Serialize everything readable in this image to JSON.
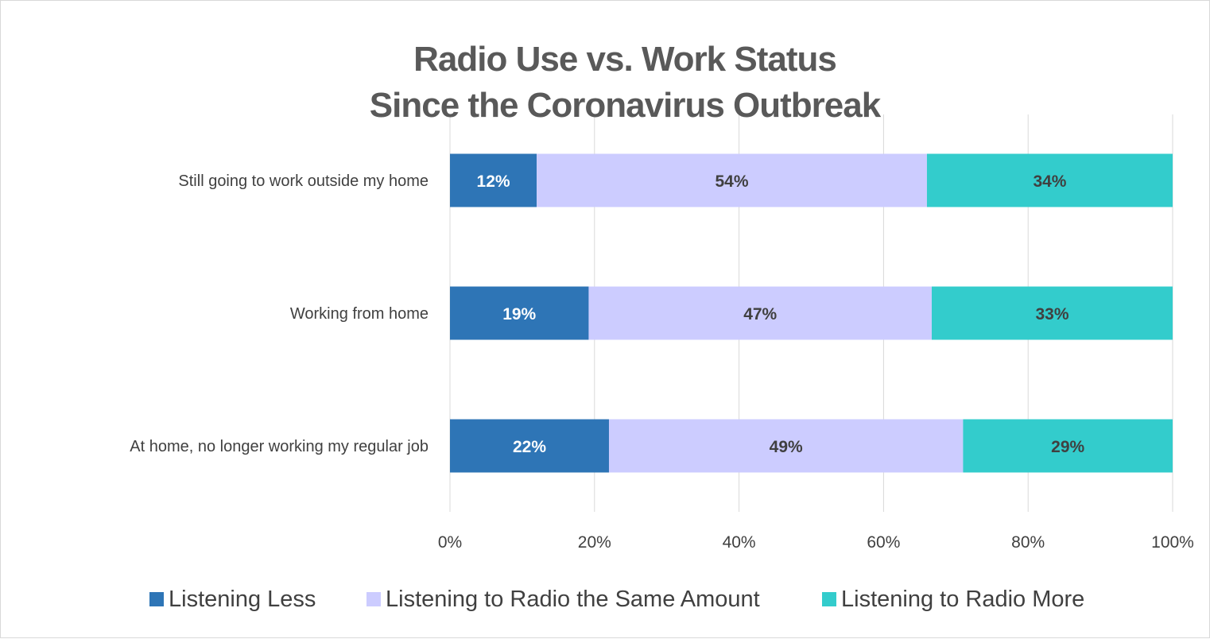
{
  "chart_data": {
    "type": "bar",
    "orientation": "horizontal",
    "stacked": "percent",
    "title": [
      "Radio Use vs. Work Status",
      "Since the Coronavirus Outbreak"
    ],
    "categories": [
      "Still going to work outside my home",
      "Working from home",
      "At home, no longer working my regular job"
    ],
    "series": [
      {
        "name": "Listening Less",
        "color": "#2E75B6",
        "label_color": "#ffffff",
        "values": [
          12,
          19,
          22
        ],
        "labels": [
          "12%",
          "19%",
          "22%"
        ]
      },
      {
        "name": "Listening to Radio the Same Amount",
        "color": "#CCCCFF",
        "label_color": "#404040",
        "values": [
          54,
          47,
          49
        ],
        "labels": [
          "54%",
          "47%",
          "49%"
        ]
      },
      {
        "name": "Listening to Radio More",
        "color": "#33CCCC",
        "label_color": "#404040",
        "values": [
          34,
          33,
          29
        ],
        "labels": [
          "34%",
          "33%",
          "29%"
        ]
      }
    ],
    "x_ticks": [
      "0%",
      "20%",
      "40%",
      "60%",
      "80%",
      "100%"
    ],
    "xlim": [
      0,
      100
    ],
    "grid": "vertical",
    "gridline_color": "#d9d9d9",
    "legend": "bottom"
  }
}
